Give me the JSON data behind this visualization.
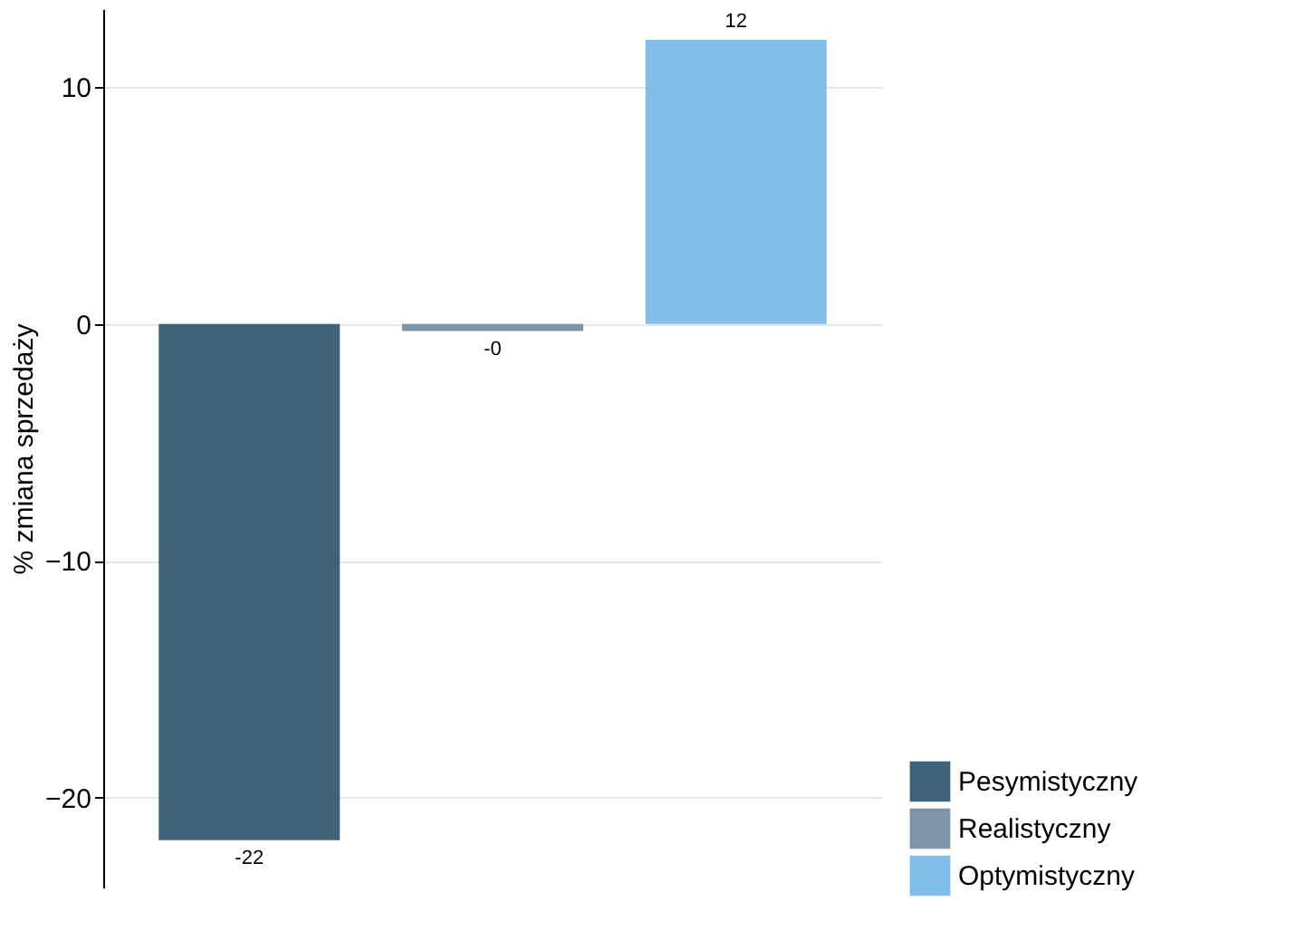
{
  "chart_data": {
    "type": "bar",
    "ylabel": "% zmiana sprzedaży",
    "categories": [
      null,
      null,
      null
    ],
    "series": [
      {
        "name": "Pesymistyczny",
        "color": "#3f6179",
        "values": [
          -21.8,
          null,
          null
        ],
        "value_labels": [
          "-22",
          null,
          null
        ]
      },
      {
        "name": "Realistyczny",
        "color": "#7f93a9",
        "values": [
          null,
          -0.3,
          null
        ],
        "value_labels": [
          null,
          "-0",
          null
        ]
      },
      {
        "name": "Optymistyczny",
        "color": "#80bde8",
        "values": [
          null,
          null,
          12.0
        ],
        "value_labels": [
          null,
          null,
          "12"
        ]
      }
    ],
    "ylim": [
      -23.8,
      13.3
    ],
    "yticks": [
      -20,
      -10,
      0,
      10
    ],
    "grid": "y",
    "legend": "bottom right"
  }
}
